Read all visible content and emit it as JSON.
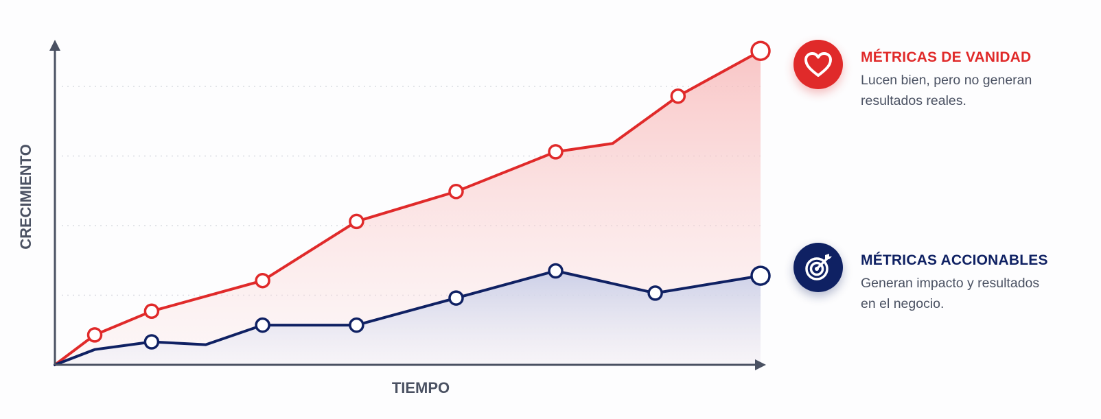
{
  "colors": {
    "vanity": "#e02a2a",
    "actionable": "#0f2163",
    "axis": "#4a5162",
    "grid": "#d9dbe1",
    "text": "#4a5162"
  },
  "chart_data": {
    "type": "line",
    "title": "",
    "xlabel": "TIEMPO",
    "ylabel": "CRECIMIENTO",
    "xlim": [
      0,
      12.4
    ],
    "ylim": [
      0,
      4.65
    ],
    "grid": {
      "y": true,
      "x": false,
      "lines": [
        1,
        2,
        3,
        4
      ]
    },
    "area_fill": true,
    "show_ticks": false,
    "legend_placement": "right",
    "series": [
      {
        "name": "MÉTRICAS DE VANIDAD",
        "color": "#e02a2a",
        "points": [
          [
            0,
            0
          ],
          [
            0.7,
            0.43
          ],
          [
            1.7,
            0.77
          ],
          [
            3.65,
            1.21
          ],
          [
            5.3,
            2.06
          ],
          [
            7.05,
            2.49
          ],
          [
            8.8,
            3.06
          ],
          [
            9.8,
            3.18
          ],
          [
            10.95,
            3.86
          ],
          [
            12.4,
            4.51
          ]
        ],
        "markers": [
          1,
          2,
          3,
          4,
          5,
          6,
          8,
          9
        ]
      },
      {
        "name": "MÉTRICAS ACCIONABLES",
        "color": "#0f2163",
        "points": [
          [
            0,
            0
          ],
          [
            0.7,
            0.22
          ],
          [
            1.7,
            0.33
          ],
          [
            2.65,
            0.29
          ],
          [
            3.65,
            0.57
          ],
          [
            5.3,
            0.57
          ],
          [
            7.05,
            0.96
          ],
          [
            8.8,
            1.35
          ],
          [
            10.55,
            1.03
          ],
          [
            12.4,
            1.28
          ]
        ],
        "markers": [
          2,
          4,
          5,
          6,
          7,
          8,
          9
        ]
      }
    ]
  },
  "legend": [
    {
      "id": "vanity",
      "icon": "heart-icon",
      "title": "MÉTRICAS DE VANIDAD",
      "description_line1": "Lucen bien, pero no generan",
      "description_line2": "resultados reales."
    },
    {
      "id": "actionable",
      "icon": "target-arrow-icon",
      "title": "MÉTRICAS ACCIONABLES",
      "description_line1": "Generan impacto y resultados",
      "description_line2": "en el negocio."
    }
  ]
}
